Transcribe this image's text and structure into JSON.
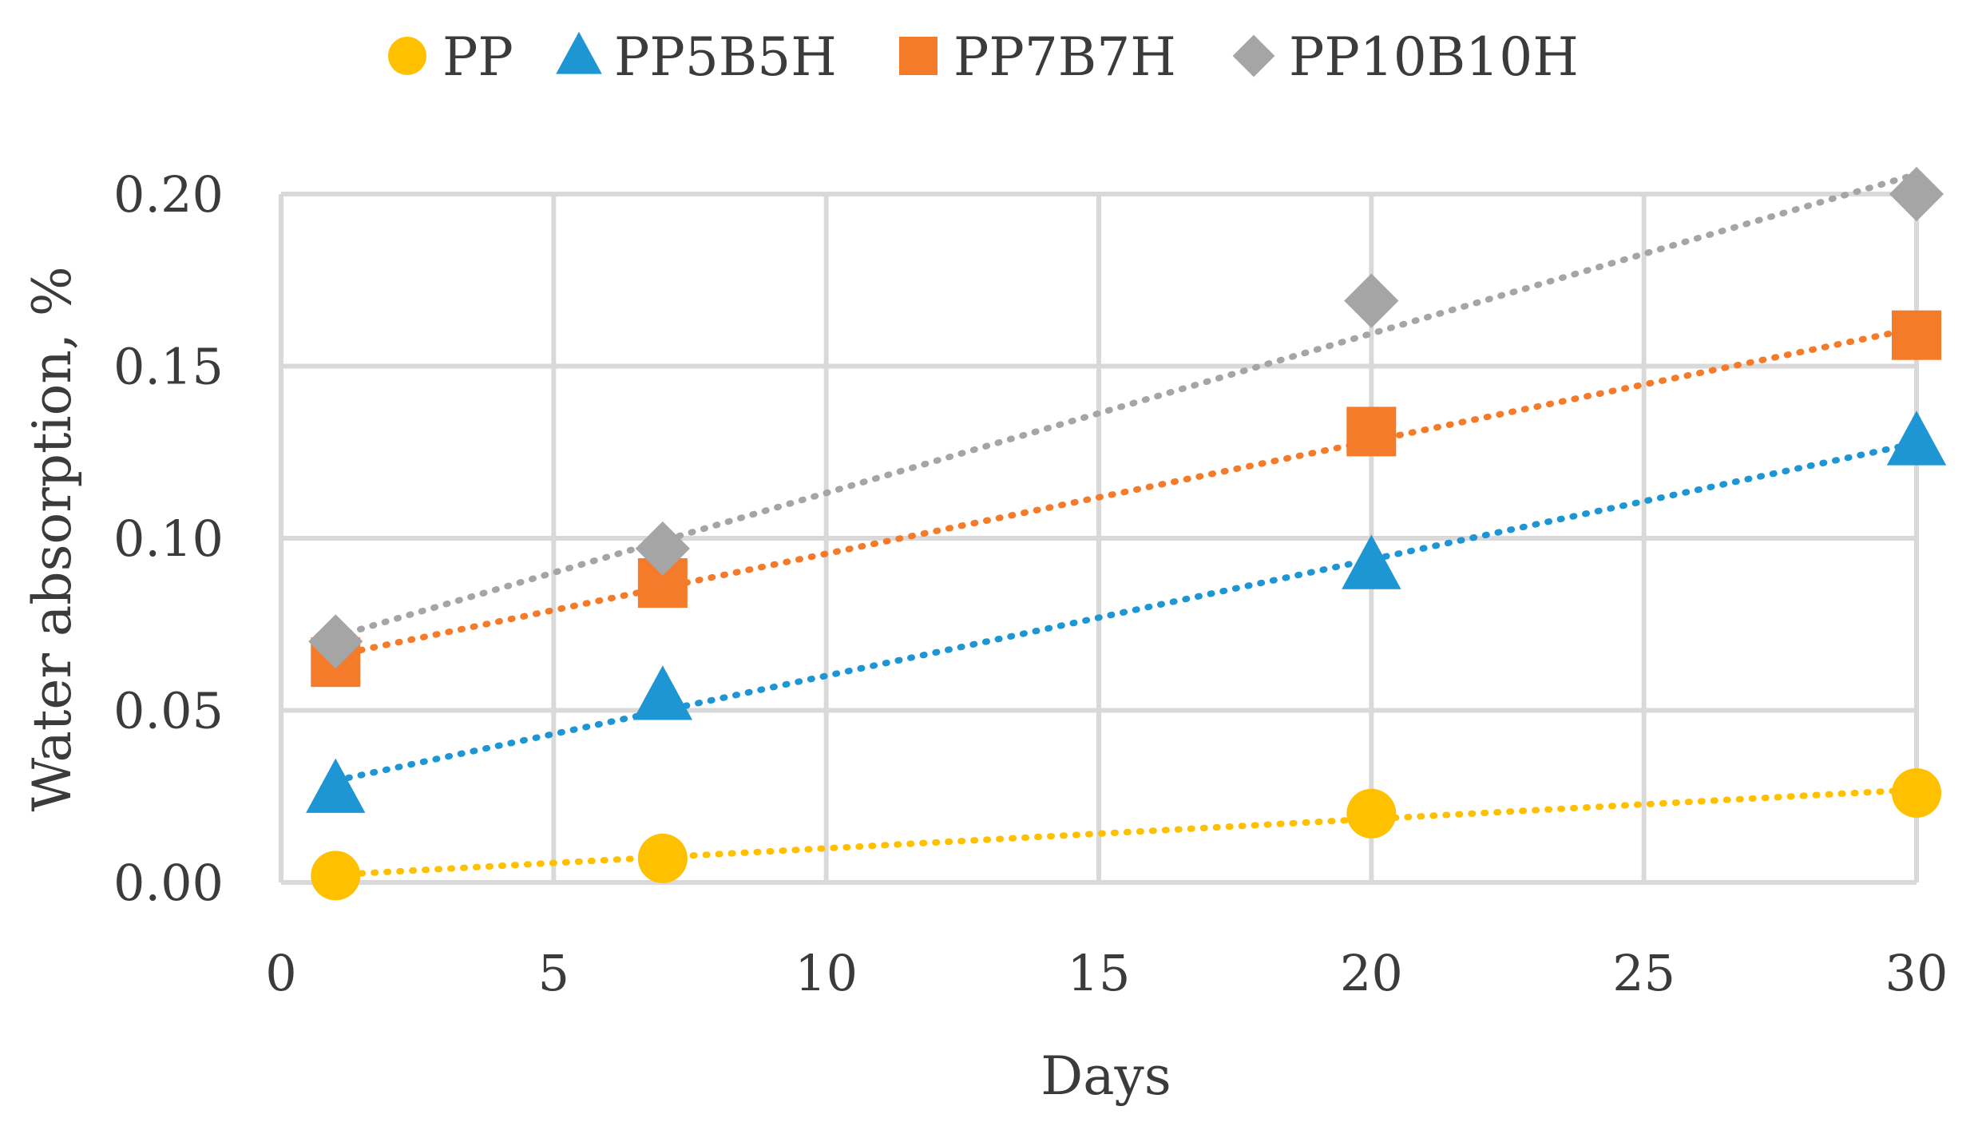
{
  "chart_data": {
    "type": "scatter",
    "title": "",
    "xlabel": "Days",
    "ylabel": "Water absorption, %",
    "xlim": [
      0,
      30
    ],
    "ylim": [
      0,
      0.2
    ],
    "xticks": [
      0,
      5,
      10,
      15,
      20,
      25,
      30
    ],
    "yticks": [
      "0.00",
      "0.05",
      "0.10",
      "0.15",
      "0.20"
    ],
    "grid": true,
    "legend_position": "top",
    "trendline": "linear, dotted",
    "series": [
      {
        "name": "PP",
        "marker": "circle",
        "color": "#FFC000",
        "x": [
          1,
          7,
          20,
          30
        ],
        "y": [
          0.002,
          0.007,
          0.02,
          0.026
        ]
      },
      {
        "name": "PP5B5H",
        "marker": "triangle",
        "color": "#1F96D4",
        "x": [
          1,
          7,
          20,
          30
        ],
        "y": [
          0.027,
          0.054,
          0.092,
          0.128
        ]
      },
      {
        "name": "PP7B7H",
        "marker": "square",
        "color": "#F47B2A",
        "x": [
          1,
          7,
          20,
          30
        ],
        "y": [
          0.064,
          0.087,
          0.131,
          0.159
        ]
      },
      {
        "name": "PP10B10H",
        "marker": "diamond",
        "color": "#A5A5A5",
        "x": [
          1,
          7,
          20,
          30
        ],
        "y": [
          0.07,
          0.097,
          0.169,
          0.2
        ]
      }
    ]
  }
}
